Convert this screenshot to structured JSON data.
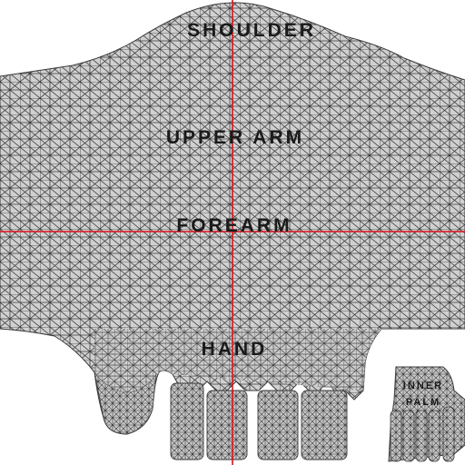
{
  "colors": {
    "background": "#ffffff",
    "mesh_fill": "#d0d0d0",
    "mesh_line": "#3a3a3a",
    "guide_line": "#e0101e",
    "label": "#1a1a1a"
  },
  "labels": {
    "shoulder": "SHOULDER",
    "upper_arm": "UPPER ARM",
    "forearm": "FOREARM",
    "hand": "HAND",
    "inner_palm_line1": "INNER",
    "inner_palm_line2": "PALM"
  }
}
